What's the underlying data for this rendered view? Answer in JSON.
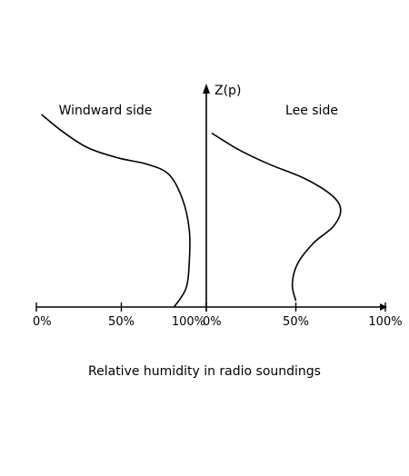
{
  "chart_data": {
    "type": "line",
    "z_axis_label": "Z(p)",
    "caption": "Relative humidity in radio soundings",
    "panels": [
      {
        "title": "Windward side",
        "x_ticks": [
          "0%",
          "50%",
          "100%"
        ],
        "xlim": [
          0,
          100
        ],
        "profile": [
          {
            "x": 3,
            "z": 0.93
          },
          {
            "x": 15,
            "z": 0.85
          },
          {
            "x": 30,
            "z": 0.77
          },
          {
            "x": 48,
            "z": 0.72
          },
          {
            "x": 65,
            "z": 0.69
          },
          {
            "x": 78,
            "z": 0.64
          },
          {
            "x": 86,
            "z": 0.52
          },
          {
            "x": 90,
            "z": 0.37
          },
          {
            "x": 90,
            "z": 0.22
          },
          {
            "x": 88,
            "z": 0.09
          },
          {
            "x": 81,
            "z": 0.0
          }
        ]
      },
      {
        "title": "Lee side",
        "x_ticks": [
          "0%",
          "50%",
          "100%"
        ],
        "xlim": [
          0,
          100
        ],
        "profile": [
          {
            "x": 3,
            "z": 0.84
          },
          {
            "x": 18,
            "z": 0.76
          },
          {
            "x": 35,
            "z": 0.69
          },
          {
            "x": 55,
            "z": 0.62
          },
          {
            "x": 70,
            "z": 0.54
          },
          {
            "x": 75,
            "z": 0.47
          },
          {
            "x": 71,
            "z": 0.39
          },
          {
            "x": 60,
            "z": 0.31
          },
          {
            "x": 51,
            "z": 0.21
          },
          {
            "x": 48,
            "z": 0.11
          },
          {
            "x": 50,
            "z": 0.03
          }
        ]
      }
    ]
  }
}
